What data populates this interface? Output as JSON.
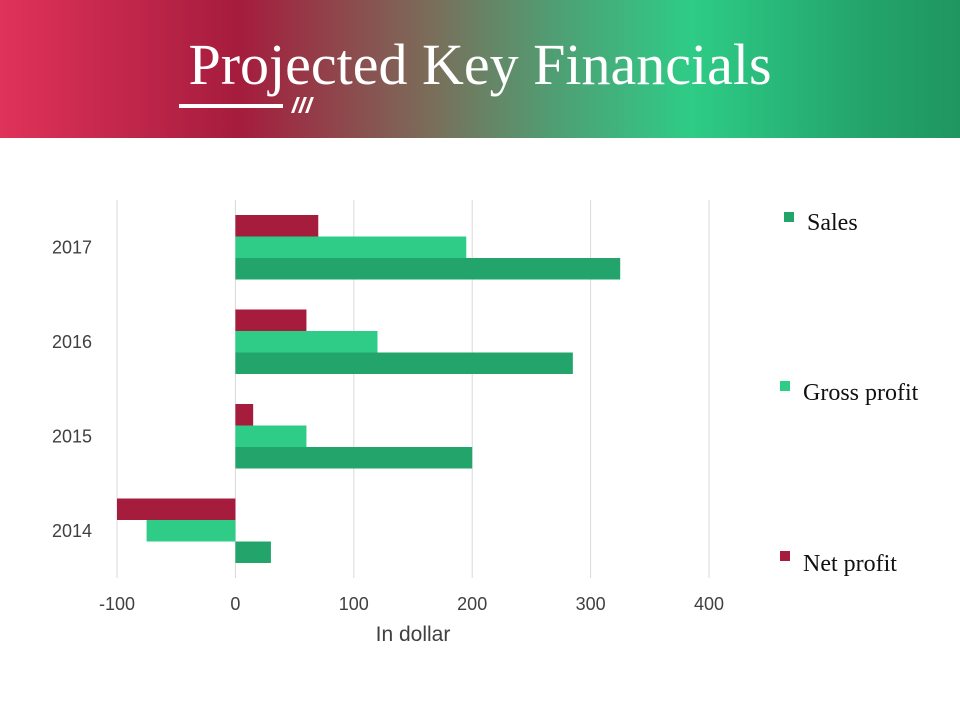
{
  "header": {
    "title": "Projected Key Financials"
  },
  "chart_data": {
    "type": "bar",
    "orientation": "horizontal",
    "categories": [
      "2017",
      "2016",
      "2015",
      "2014"
    ],
    "series": [
      {
        "name": "Net profit",
        "color": "#a51c3d",
        "values": [
          70,
          60,
          15,
          -100
        ]
      },
      {
        "name": "Gross profit",
        "color": "#2ecc86",
        "values": [
          195,
          120,
          60,
          -75
        ]
      },
      {
        "name": "Sales",
        "color": "#23a46b",
        "values": [
          325,
          285,
          200,
          30
        ]
      }
    ],
    "xlabel": "In dollar",
    "ylabel": "",
    "xlim": [
      -100,
      400
    ],
    "xticks": [
      "-100",
      "0",
      "100",
      "200",
      "300",
      "400"
    ],
    "grid": "vertical",
    "legend": {
      "placement": "right",
      "order": [
        "Sales",
        "Gross profit",
        "Net profit"
      ]
    }
  }
}
